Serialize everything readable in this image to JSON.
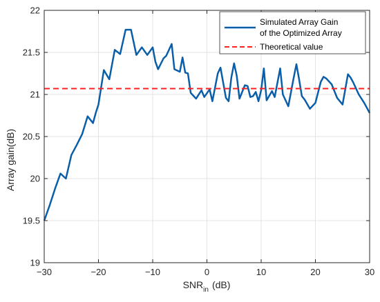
{
  "chart_data": {
    "type": "line",
    "xlabel": "SNR",
    "xlabel_subscript": "in",
    "xlabel_suffix": "(dB)",
    "ylabel": "Array gain(dB)",
    "xlim": [
      -30,
      30
    ],
    "ylim": [
      19,
      22
    ],
    "xticks": [
      -30,
      -20,
      -10,
      0,
      10,
      20,
      30
    ],
    "yticks": [
      19,
      19.5,
      20,
      20.5,
      21,
      21.5,
      22
    ],
    "xtick_labels": [
      "−30",
      "−20",
      "−10",
      "0",
      "10",
      "20",
      "30"
    ],
    "ytick_labels": [
      "19",
      "19.5",
      "20",
      "20.5",
      "21",
      "21.5",
      "22"
    ],
    "grid": true,
    "legend_position": "top-right",
    "series": [
      {
        "name": "Simulated Array Gain of the Optimized Array",
        "legend_lines": [
          "Simulated Array Gain",
          "of the Optimized Array"
        ],
        "color": "#0a5ea8",
        "style": "solid",
        "x": [
          -30,
          -29,
          -28,
          -27,
          -26,
          -25,
          -24,
          -23,
          -22,
          -21,
          -20.5,
          -20,
          -19,
          -18,
          -17,
          -16,
          -15,
          -14,
          -13,
          -12,
          -11,
          -10,
          -9.5,
          -9,
          -8,
          -7.5,
          -6.5,
          -6,
          -5,
          -4.5,
          -4,
          -3.5,
          -3,
          -2,
          -1,
          -0.5,
          0.5,
          1,
          2,
          2.5,
          3.5,
          4,
          4.5,
          5,
          5.5,
          6,
          7,
          7.5,
          8,
          8.5,
          9,
          9.5,
          10,
          10.5,
          11,
          12,
          12.5,
          13.5,
          14,
          15,
          16,
          16.5,
          17,
          17.5,
          18,
          19,
          20,
          21,
          21.5,
          22,
          23,
          24,
          25,
          26,
          26.5,
          27,
          28,
          29,
          30
        ],
        "values": [
          19.5,
          19.68,
          19.88,
          20.06,
          20.0,
          20.28,
          20.4,
          20.53,
          20.74,
          20.66,
          20.78,
          20.88,
          21.29,
          21.18,
          21.53,
          21.48,
          21.77,
          21.77,
          21.47,
          21.56,
          21.47,
          21.56,
          21.39,
          21.3,
          21.43,
          21.46,
          21.6,
          21.3,
          21.27,
          21.44,
          21.26,
          21.25,
          21.02,
          20.95,
          21.05,
          20.97,
          21.06,
          20.92,
          21.25,
          21.32,
          20.96,
          20.92,
          21.2,
          21.37,
          21.22,
          20.95,
          21.11,
          21.1,
          20.97,
          20.98,
          21.03,
          20.92,
          21.05,
          21.31,
          20.93,
          21.04,
          20.97,
          21.31,
          21.0,
          20.86,
          21.2,
          21.36,
          21.18,
          20.98,
          20.94,
          20.83,
          20.9,
          21.15,
          21.21,
          21.19,
          21.12,
          20.96,
          20.88,
          21.24,
          21.2,
          21.14,
          21.0,
          20.9,
          20.78
        ]
      },
      {
        "name": "Theoretical value",
        "color": "#ff1f1f",
        "style": "dashed",
        "x": [
          -30,
          30
        ],
        "values": [
          21.07,
          21.07
        ]
      }
    ]
  }
}
